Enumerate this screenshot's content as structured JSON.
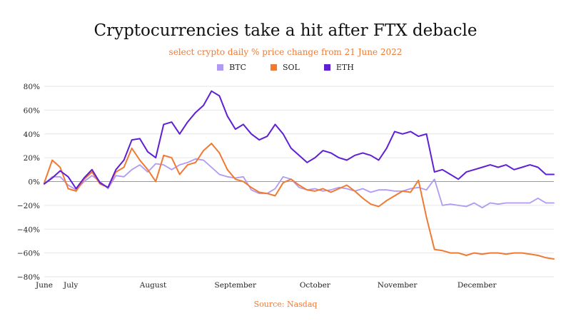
{
  "chart_data": {
    "type": "line",
    "title": "Cryptocurrencies take a hit after FTX debacle",
    "subtitle": "select crypto daily % price change from 21 June 2022",
    "source": "Source: Nasdaq",
    "xlabel": "",
    "ylabel": "",
    "ylim": [
      -80,
      80
    ],
    "y_ticks": [
      -80,
      -60,
      -40,
      -20,
      0,
      20,
      40,
      60,
      80
    ],
    "y_tick_labels": [
      "−80%",
      "−60%",
      "−40%",
      "−20%",
      "0%",
      "20%",
      "40%",
      "60%",
      "80%"
    ],
    "x_ticks": [
      {
        "label": "June",
        "day": 0
      },
      {
        "label": "July",
        "day": 10
      },
      {
        "label": "August",
        "day": 41
      },
      {
        "label": "September",
        "day": 72
      },
      {
        "label": "October",
        "day": 102
      },
      {
        "label": "November",
        "day": 133
      },
      {
        "label": "December",
        "day": 163
      }
    ],
    "x_points": [
      0,
      3,
      6,
      9,
      12,
      15,
      18,
      21,
      24,
      27,
      30,
      33,
      36,
      39,
      42,
      45,
      48,
      51,
      54,
      57,
      60,
      63,
      66,
      69,
      72,
      75,
      78,
      81,
      84,
      87,
      90,
      93,
      96,
      99,
      102,
      105,
      108,
      111,
      114,
      117,
      120,
      123,
      126,
      129,
      132,
      135,
      138,
      141,
      144,
      147,
      150,
      153,
      156,
      159,
      162,
      165,
      168,
      171,
      174,
      177,
      180,
      183,
      186,
      189,
      192
    ],
    "grid": true,
    "legend_position": "top-center",
    "series": [
      {
        "name": "BTC",
        "color": "#b09af2",
        "values": [
          -2,
          4,
          4,
          -3,
          -7,
          0,
          5,
          0,
          -6,
          5,
          4,
          10,
          14,
          8,
          15,
          14,
          10,
          14,
          16,
          19,
          18,
          12,
          6,
          4,
          3,
          4,
          -7,
          -10,
          -10,
          -6,
          4,
          2,
          -5,
          -7,
          -6,
          -8,
          -7,
          -5,
          -6,
          -8,
          -6,
          -9,
          -7,
          -7,
          -8,
          -8,
          -6,
          -5,
          -7,
          2,
          -20,
          -19,
          -20,
          -21,
          -18,
          -22,
          -18,
          -19,
          -18,
          -18,
          -18,
          -18,
          -14,
          -18,
          -18
        ]
      },
      {
        "name": "SOL",
        "color": "#f07a32",
        "values": [
          -1,
          18,
          12,
          -6,
          -8,
          2,
          8,
          -2,
          -5,
          8,
          12,
          28,
          18,
          10,
          0,
          22,
          20,
          6,
          14,
          16,
          26,
          32,
          24,
          10,
          2,
          0,
          -5,
          -9,
          -10,
          -12,
          -1,
          2,
          -3,
          -7,
          -8,
          -6,
          -9,
          -6,
          -3,
          -8,
          -14,
          -19,
          -21,
          -16,
          -12,
          -8,
          -9,
          1,
          -30,
          -57,
          -58,
          -60,
          -60,
          -62,
          -60,
          -61,
          -60,
          -60,
          -61,
          -60,
          -60,
          -61,
          -62,
          -64,
          -65
        ]
      },
      {
        "name": "ETH",
        "color": "#5f1fd4",
        "values": [
          -2,
          3,
          9,
          4,
          -6,
          3,
          10,
          -1,
          -5,
          10,
          18,
          35,
          36,
          25,
          20,
          48,
          50,
          40,
          50,
          58,
          64,
          76,
          72,
          55,
          44,
          48,
          40,
          35,
          38,
          48,
          40,
          28,
          22,
          16,
          20,
          26,
          24,
          20,
          18,
          22,
          24,
          22,
          18,
          28,
          42,
          40,
          42,
          38,
          40,
          8,
          10,
          6,
          2,
          8,
          10,
          12,
          14,
          12,
          14,
          10,
          12,
          14,
          12,
          6,
          6
        ]
      }
    ]
  }
}
